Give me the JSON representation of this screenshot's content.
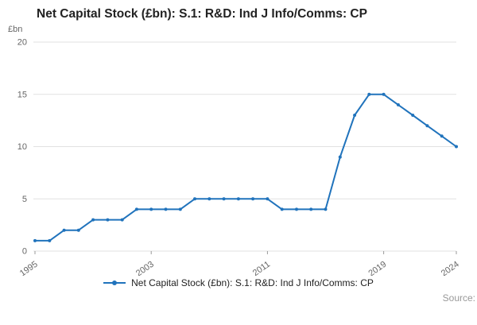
{
  "page": {
    "title": "Net Capital Stock (£bn): S.1: R&D: Ind J Info/Comms: CP",
    "source_label": "Source:"
  },
  "chart_data": {
    "type": "line",
    "title": "Net Capital Stock (£bn): S.1: R&D: Ind J Info/Comms: CP",
    "xlabel": "",
    "ylabel": "£bn",
    "ylim": [
      0,
      20
    ],
    "yticks": [
      0,
      5,
      10,
      15,
      20
    ],
    "xticks": [
      1995,
      2003,
      2011,
      2019,
      2024
    ],
    "grid": true,
    "legend_position": "bottom",
    "x": [
      1995,
      1996,
      1997,
      1998,
      1999,
      2000,
      2001,
      2002,
      2003,
      2004,
      2005,
      2006,
      2007,
      2008,
      2009,
      2010,
      2011,
      2012,
      2013,
      2014,
      2015,
      2016,
      2017,
      2018,
      2019,
      2020,
      2021,
      2022,
      2023,
      2024
    ],
    "series": [
      {
        "name": "Net Capital Stock (£bn): S.1: R&D: Ind J Info/Comms: CP",
        "color": "#2073bc",
        "values": [
          1,
          1,
          2,
          2,
          3,
          3,
          3,
          4,
          4,
          4,
          4,
          5,
          5,
          5,
          5,
          5,
          5,
          4,
          4,
          4,
          4,
          9,
          13,
          15,
          15,
          14,
          13,
          12,
          11,
          10
        ]
      }
    ],
    "colors": {
      "grid": "#e1e1e1",
      "tick_text": "#666666",
      "axis_tick": "#999999"
    }
  }
}
